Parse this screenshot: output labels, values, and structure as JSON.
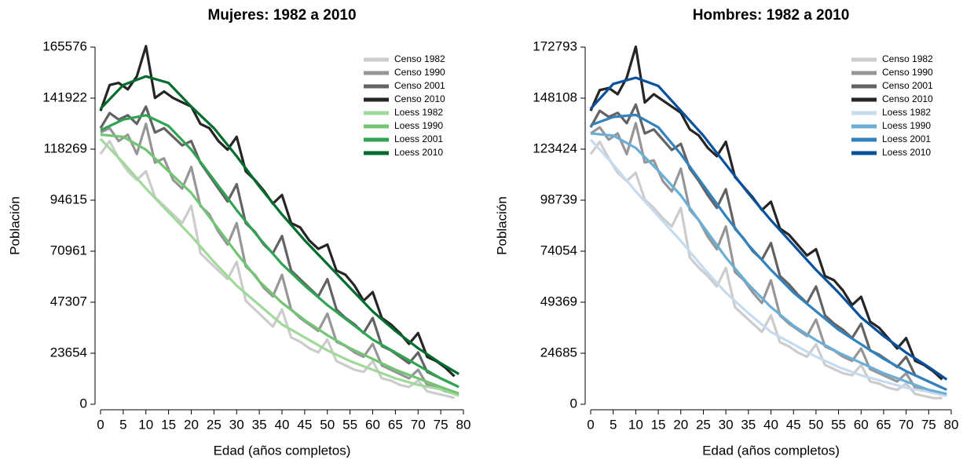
{
  "chart_data": [
    {
      "type": "line",
      "title": "Mujeres: 1982 a 2010",
      "x_label": "Edad (años completos)",
      "y_label": "Población",
      "xlim": [
        0,
        80
      ],
      "ylim": [
        0,
        165576
      ],
      "xticks": [
        0,
        5,
        10,
        15,
        20,
        25,
        30,
        35,
        40,
        45,
        50,
        55,
        60,
        65,
        70,
        75,
        80
      ],
      "yticks": [
        0,
        23654,
        47307,
        70961,
        94615,
        118269,
        141922,
        165576
      ],
      "legend": "top-right",
      "series": [
        {
          "name": "Censo 1982",
          "color": "#cccccc",
          "x": [
            0,
            2,
            4,
            6,
            8,
            10,
            12,
            14,
            16,
            18,
            20,
            22,
            24,
            26,
            28,
            30,
            32,
            34,
            36,
            38,
            40,
            42,
            44,
            46,
            48,
            50,
            52,
            54,
            56,
            58,
            60,
            62,
            64,
            66,
            68,
            70,
            72,
            74,
            76,
            78
          ],
          "values": [
            116000,
            122000,
            114000,
            108000,
            104000,
            108000,
            96000,
            92000,
            88000,
            84000,
            92000,
            70000,
            66000,
            62000,
            58000,
            66000,
            48000,
            44000,
            40000,
            36000,
            44000,
            31000,
            29000,
            26000,
            24000,
            30000,
            20000,
            18000,
            16000,
            15000,
            20000,
            12000,
            11000,
            9000,
            8000,
            11000,
            6000,
            5000,
            4000,
            3000
          ]
        },
        {
          "name": "Censo 1990",
          "color": "#969696",
          "x": [
            0,
            2,
            4,
            6,
            8,
            10,
            12,
            14,
            16,
            18,
            20,
            22,
            24,
            26,
            28,
            30,
            32,
            34,
            36,
            38,
            40,
            42,
            44,
            46,
            48,
            50,
            52,
            54,
            56,
            58,
            60,
            62,
            64,
            66,
            68,
            70,
            72,
            74,
            76,
            78
          ],
          "values": [
            126000,
            128000,
            122000,
            125000,
            116000,
            130000,
            112000,
            114000,
            104000,
            100000,
            110000,
            92000,
            88000,
            80000,
            74000,
            84000,
            64000,
            60000,
            54000,
            50000,
            60000,
            44000,
            40000,
            37000,
            34000,
            42000,
            29000,
            27000,
            24000,
            22000,
            28000,
            18000,
            16000,
            14000,
            12000,
            16000,
            9000,
            8000,
            6000,
            5000
          ]
        },
        {
          "name": "Censo 2001",
          "color": "#636363",
          "x": [
            0,
            2,
            4,
            6,
            8,
            10,
            12,
            14,
            16,
            18,
            20,
            22,
            24,
            26,
            28,
            30,
            32,
            34,
            36,
            38,
            40,
            42,
            44,
            46,
            48,
            50,
            52,
            54,
            56,
            58,
            60,
            62,
            64,
            66,
            68,
            70,
            72,
            74,
            76,
            78
          ],
          "values": [
            128000,
            135000,
            132000,
            134000,
            130000,
            138000,
            126000,
            128000,
            124000,
            120000,
            122000,
            112000,
            106000,
            100000,
            94000,
            102000,
            84000,
            80000,
            74000,
            70000,
            78000,
            62000,
            58000,
            54000,
            50000,
            58000,
            44000,
            40000,
            37000,
            33000,
            40000,
            27000,
            25000,
            22000,
            19000,
            24000,
            15000,
            13000,
            11000,
            9000
          ]
        },
        {
          "name": "Censo 2010",
          "color": "#252525",
          "x": [
            0,
            2,
            4,
            6,
            8,
            10,
            12,
            14,
            16,
            18,
            20,
            22,
            24,
            26,
            28,
            30,
            32,
            34,
            36,
            38,
            40,
            42,
            44,
            46,
            48,
            50,
            52,
            54,
            56,
            58,
            60,
            62,
            64,
            66,
            68,
            70,
            72,
            74,
            76,
            78
          ],
          "values": [
            136000,
            148000,
            149000,
            146000,
            152000,
            166000,
            142000,
            145000,
            142000,
            140000,
            138000,
            130000,
            128000,
            122000,
            118000,
            124000,
            108000,
            104000,
            99000,
            93000,
            97000,
            84000,
            82000,
            76000,
            72000,
            74000,
            62000,
            60000,
            55000,
            48000,
            52000,
            40000,
            37000,
            33000,
            28000,
            33000,
            22000,
            20000,
            17000,
            13000
          ]
        },
        {
          "name": "Loess 1982",
          "color": "#a1d99b",
          "x": [
            0,
            5,
            10,
            15,
            20,
            25,
            30,
            35,
            40,
            45,
            50,
            55,
            60,
            65,
            70,
            75,
            79
          ],
          "values": [
            123000,
            112000,
            100000,
            89000,
            78000,
            66000,
            55000,
            46000,
            37000,
            31000,
            25000,
            20000,
            16000,
            12000,
            9000,
            7000,
            4000
          ]
        },
        {
          "name": "Loess 1990",
          "color": "#74c476",
          "x": [
            0,
            5,
            10,
            15,
            20,
            25,
            30,
            35,
            40,
            45,
            50,
            55,
            60,
            65,
            70,
            75,
            79
          ],
          "values": [
            125000,
            124000,
            118000,
            108000,
            98000,
            84000,
            70000,
            57000,
            47000,
            39000,
            32000,
            26000,
            21000,
            16000,
            12000,
            8000,
            5000
          ]
        },
        {
          "name": "Loess 2001",
          "color": "#31a354",
          "x": [
            0,
            5,
            10,
            15,
            20,
            25,
            30,
            35,
            40,
            45,
            50,
            55,
            60,
            65,
            70,
            75,
            79
          ],
          "values": [
            127000,
            132000,
            134000,
            129000,
            118000,
            104000,
            90000,
            77000,
            65000,
            55000,
            46000,
            38000,
            30000,
            24000,
            18000,
            12000,
            8000
          ]
        },
        {
          "name": "Loess 2010",
          "color": "#006d2c",
          "x": [
            0,
            5,
            10,
            15,
            20,
            25,
            30,
            35,
            40,
            45,
            50,
            55,
            60,
            65,
            70,
            75,
            79
          ],
          "values": [
            137000,
            148000,
            152000,
            149000,
            138000,
            128000,
            115000,
            101000,
            88000,
            76000,
            65000,
            54000,
            43000,
            34000,
            26000,
            19000,
            14000
          ]
        }
      ]
    },
    {
      "type": "line",
      "title": "Hombres: 1982 a 2010",
      "x_label": "Edad (años completos)",
      "y_label": "Población",
      "xlim": [
        0,
        80
      ],
      "ylim": [
        0,
        172793
      ],
      "xticks": [
        0,
        5,
        10,
        15,
        20,
        25,
        30,
        35,
        40,
        45,
        50,
        55,
        60,
        65,
        70,
        75,
        80
      ],
      "yticks": [
        0,
        24685,
        49369,
        74054,
        98739,
        123424,
        148108,
        172793
      ],
      "legend": "top-right",
      "series": [
        {
          "name": "Censo 1982",
          "color": "#cccccc",
          "x": [
            0,
            2,
            4,
            6,
            8,
            10,
            12,
            14,
            16,
            18,
            20,
            22,
            24,
            26,
            28,
            30,
            32,
            34,
            36,
            38,
            40,
            42,
            44,
            46,
            48,
            50,
            52,
            54,
            56,
            58,
            60,
            62,
            64,
            66,
            68,
            70,
            72,
            74,
            76,
            78
          ],
          "values": [
            121000,
            127000,
            119000,
            112000,
            108000,
            112000,
            99000,
            95000,
            90000,
            86000,
            95000,
            71000,
            66000,
            62000,
            57000,
            66000,
            47000,
            43000,
            39000,
            35000,
            43000,
            30000,
            28000,
            25000,
            23000,
            29000,
            19000,
            17000,
            15000,
            14000,
            19000,
            11000,
            10000,
            8000,
            7000,
            10000,
            5000,
            4000,
            3000,
            3000
          ]
        },
        {
          "name": "Censo 1990",
          "color": "#969696",
          "x": [
            0,
            2,
            4,
            6,
            8,
            10,
            12,
            14,
            16,
            18,
            20,
            22,
            24,
            26,
            28,
            30,
            32,
            34,
            36,
            38,
            40,
            42,
            44,
            46,
            48,
            50,
            52,
            54,
            56,
            58,
            60,
            62,
            64,
            66,
            68,
            70,
            72,
            74,
            76,
            78
          ],
          "values": [
            131000,
            134000,
            128000,
            131000,
            121000,
            136000,
            117000,
            118000,
            108000,
            103000,
            114000,
            94000,
            89000,
            81000,
            75000,
            86000,
            64000,
            60000,
            54000,
            49000,
            60000,
            43000,
            39000,
            36000,
            33000,
            41000,
            28000,
            26000,
            23000,
            21000,
            27000,
            17000,
            15000,
            13000,
            11000,
            15000,
            8000,
            7000,
            6000,
            5000
          ]
        },
        {
          "name": "Censo 2001",
          "color": "#636363",
          "x": [
            0,
            2,
            4,
            6,
            8,
            10,
            12,
            14,
            16,
            18,
            20,
            22,
            24,
            26,
            28,
            30,
            32,
            34,
            36,
            38,
            40,
            42,
            44,
            46,
            48,
            50,
            52,
            54,
            56,
            58,
            60,
            62,
            64,
            66,
            68,
            70,
            72,
            74,
            76,
            78
          ],
          "values": [
            134000,
            142000,
            139000,
            141000,
            136000,
            145000,
            131000,
            133000,
            128000,
            123000,
            126000,
            114000,
            108000,
            101000,
            95000,
            104000,
            85000,
            80000,
            74000,
            70000,
            78000,
            62000,
            58000,
            53000,
            49000,
            57000,
            43000,
            39000,
            36000,
            32000,
            39000,
            26000,
            24000,
            21000,
            18000,
            23000,
            14000,
            12000,
            10000,
            8000
          ]
        },
        {
          "name": "Censo 2010",
          "color": "#252525",
          "x": [
            0,
            2,
            4,
            6,
            8,
            10,
            12,
            14,
            16,
            18,
            20,
            22,
            24,
            26,
            28,
            30,
            32,
            34,
            36,
            38,
            40,
            42,
            44,
            46,
            48,
            50,
            52,
            54,
            56,
            58,
            60,
            62,
            64,
            66,
            68,
            70,
            72,
            74,
            76,
            78
          ],
          "values": [
            142000,
            152000,
            153000,
            150000,
            158000,
            173000,
            146000,
            150000,
            147000,
            144000,
            141000,
            133000,
            130000,
            124000,
            120000,
            127000,
            110000,
            105000,
            100000,
            94000,
            98000,
            85000,
            82000,
            77000,
            72000,
            75000,
            62000,
            60000,
            55000,
            48000,
            52000,
            40000,
            37000,
            32000,
            27000,
            32000,
            21000,
            19000,
            16000,
            12000
          ]
        },
        {
          "name": "Loess 1982",
          "color": "#c6dbef",
          "x": [
            0,
            5,
            10,
            15,
            20,
            25,
            30,
            35,
            40,
            45,
            50,
            55,
            60,
            65,
            70,
            75,
            79
          ],
          "values": [
            128000,
            116000,
            103000,
            91000,
            79000,
            66000,
            54000,
            44000,
            35000,
            29000,
            23000,
            18000,
            14000,
            11000,
            8000,
            6000,
            4000
          ]
        },
        {
          "name": "Loess 1990",
          "color": "#6baed6",
          "x": [
            0,
            5,
            10,
            15,
            20,
            25,
            30,
            35,
            40,
            45,
            50,
            55,
            60,
            65,
            70,
            75,
            79
          ],
          "values": [
            131000,
            130000,
            124000,
            113000,
            101000,
            86000,
            71000,
            58000,
            47000,
            38000,
            31000,
            25000,
            20000,
            15000,
            11000,
            7000,
            5000
          ]
        },
        {
          "name": "Loess 2001",
          "color": "#3182bd",
          "x": [
            0,
            5,
            10,
            15,
            20,
            25,
            30,
            35,
            40,
            45,
            50,
            55,
            60,
            65,
            70,
            75,
            79
          ],
          "values": [
            135000,
            139000,
            140000,
            134000,
            121000,
            106000,
            91000,
            77000,
            65000,
            54000,
            45000,
            36000,
            29000,
            22000,
            16000,
            11000,
            7000
          ]
        },
        {
          "name": "Loess 2010",
          "color": "#08519c",
          "x": [
            0,
            5,
            10,
            15,
            20,
            25,
            30,
            35,
            40,
            45,
            50,
            55,
            60,
            65,
            70,
            75,
            79
          ],
          "values": [
            143000,
            155000,
            158000,
            154000,
            142000,
            130000,
            116000,
            102000,
            89000,
            77000,
            65000,
            54000,
            42000,
            33000,
            25000,
            18000,
            12000
          ]
        }
      ]
    }
  ]
}
